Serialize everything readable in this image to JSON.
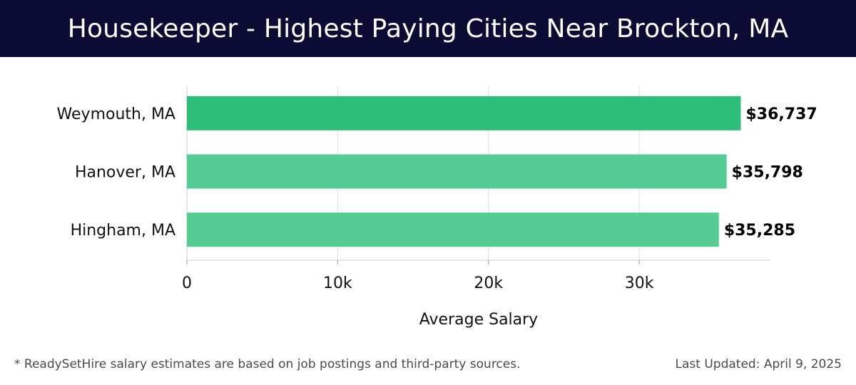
{
  "header": {
    "title": "Housekeeper - Highest Paying Cities Near Brockton, MA"
  },
  "footer": {
    "note": "* ReadySetHire salary estimates are based on job postings and third-party sources.",
    "updated": "Last Updated: April 9, 2025"
  },
  "chart_data": {
    "type": "bar",
    "orientation": "horizontal",
    "categories": [
      "Weymouth, MA",
      "Hanover, MA",
      "Hingham, MA"
    ],
    "values": [
      36737,
      35798,
      35285
    ],
    "value_labels": [
      "$36,737",
      "$35,798",
      "$35,285"
    ],
    "xlabel": "Average Salary",
    "ylabel": "",
    "xlim": [
      0,
      38700
    ],
    "xticks": [
      0,
      10000,
      20000,
      30000
    ],
    "xtick_labels": [
      "0",
      "10k",
      "20k",
      "30k"
    ],
    "grid": true,
    "colors": {
      "top_bar": "#2dbf78",
      "bar": "#55cc94",
      "grid": "#dddddd",
      "axis": "#cccccc",
      "text": "#111111"
    }
  }
}
